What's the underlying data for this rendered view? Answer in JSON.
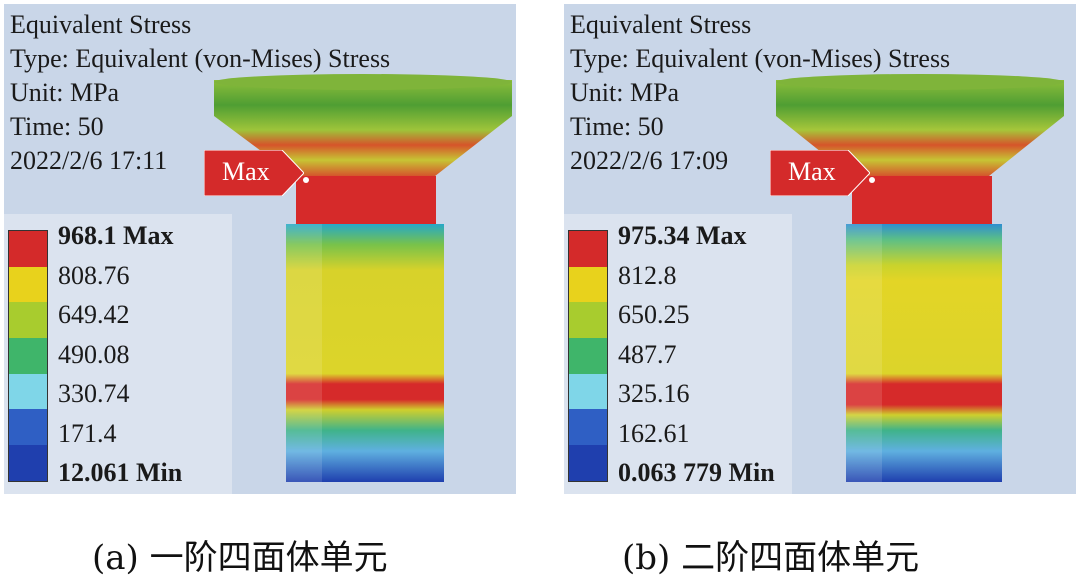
{
  "panels": [
    {
      "title": "Equivalent Stress",
      "type": "Type: Equivalent (von-Mises) Stress",
      "unit": "Unit: MPa",
      "time": "Time: 50",
      "date": "2022/2/6   17:11",
      "max_tag": "Max",
      "legend": [
        "968.1 Max",
        "808.76",
        "649.42",
        "490.08",
        "330.74",
        "171.4",
        "12.061 Min"
      ],
      "caption": "(a)  一阶四面体单元"
    },
    {
      "title": "Equivalent Stress",
      "type": "Type: Equivalent (von-Mises) Stress",
      "unit": "Unit: MPa",
      "time": "Time: 50",
      "date": "2022/2/6   17:09",
      "max_tag": "Max",
      "legend": [
        "975.34 Max",
        "812.8",
        "650.25",
        "487.7",
        "325.16",
        "162.61",
        "0.063 779 Min"
      ],
      "caption": "(b)  二阶四面体单元"
    }
  ],
  "legend_colors": [
    "#d42a2a",
    "#e8d21c",
    "#a8cc2e",
    "#3fb56a",
    "#7fd6e8",
    "#2f5fc4"
  ]
}
